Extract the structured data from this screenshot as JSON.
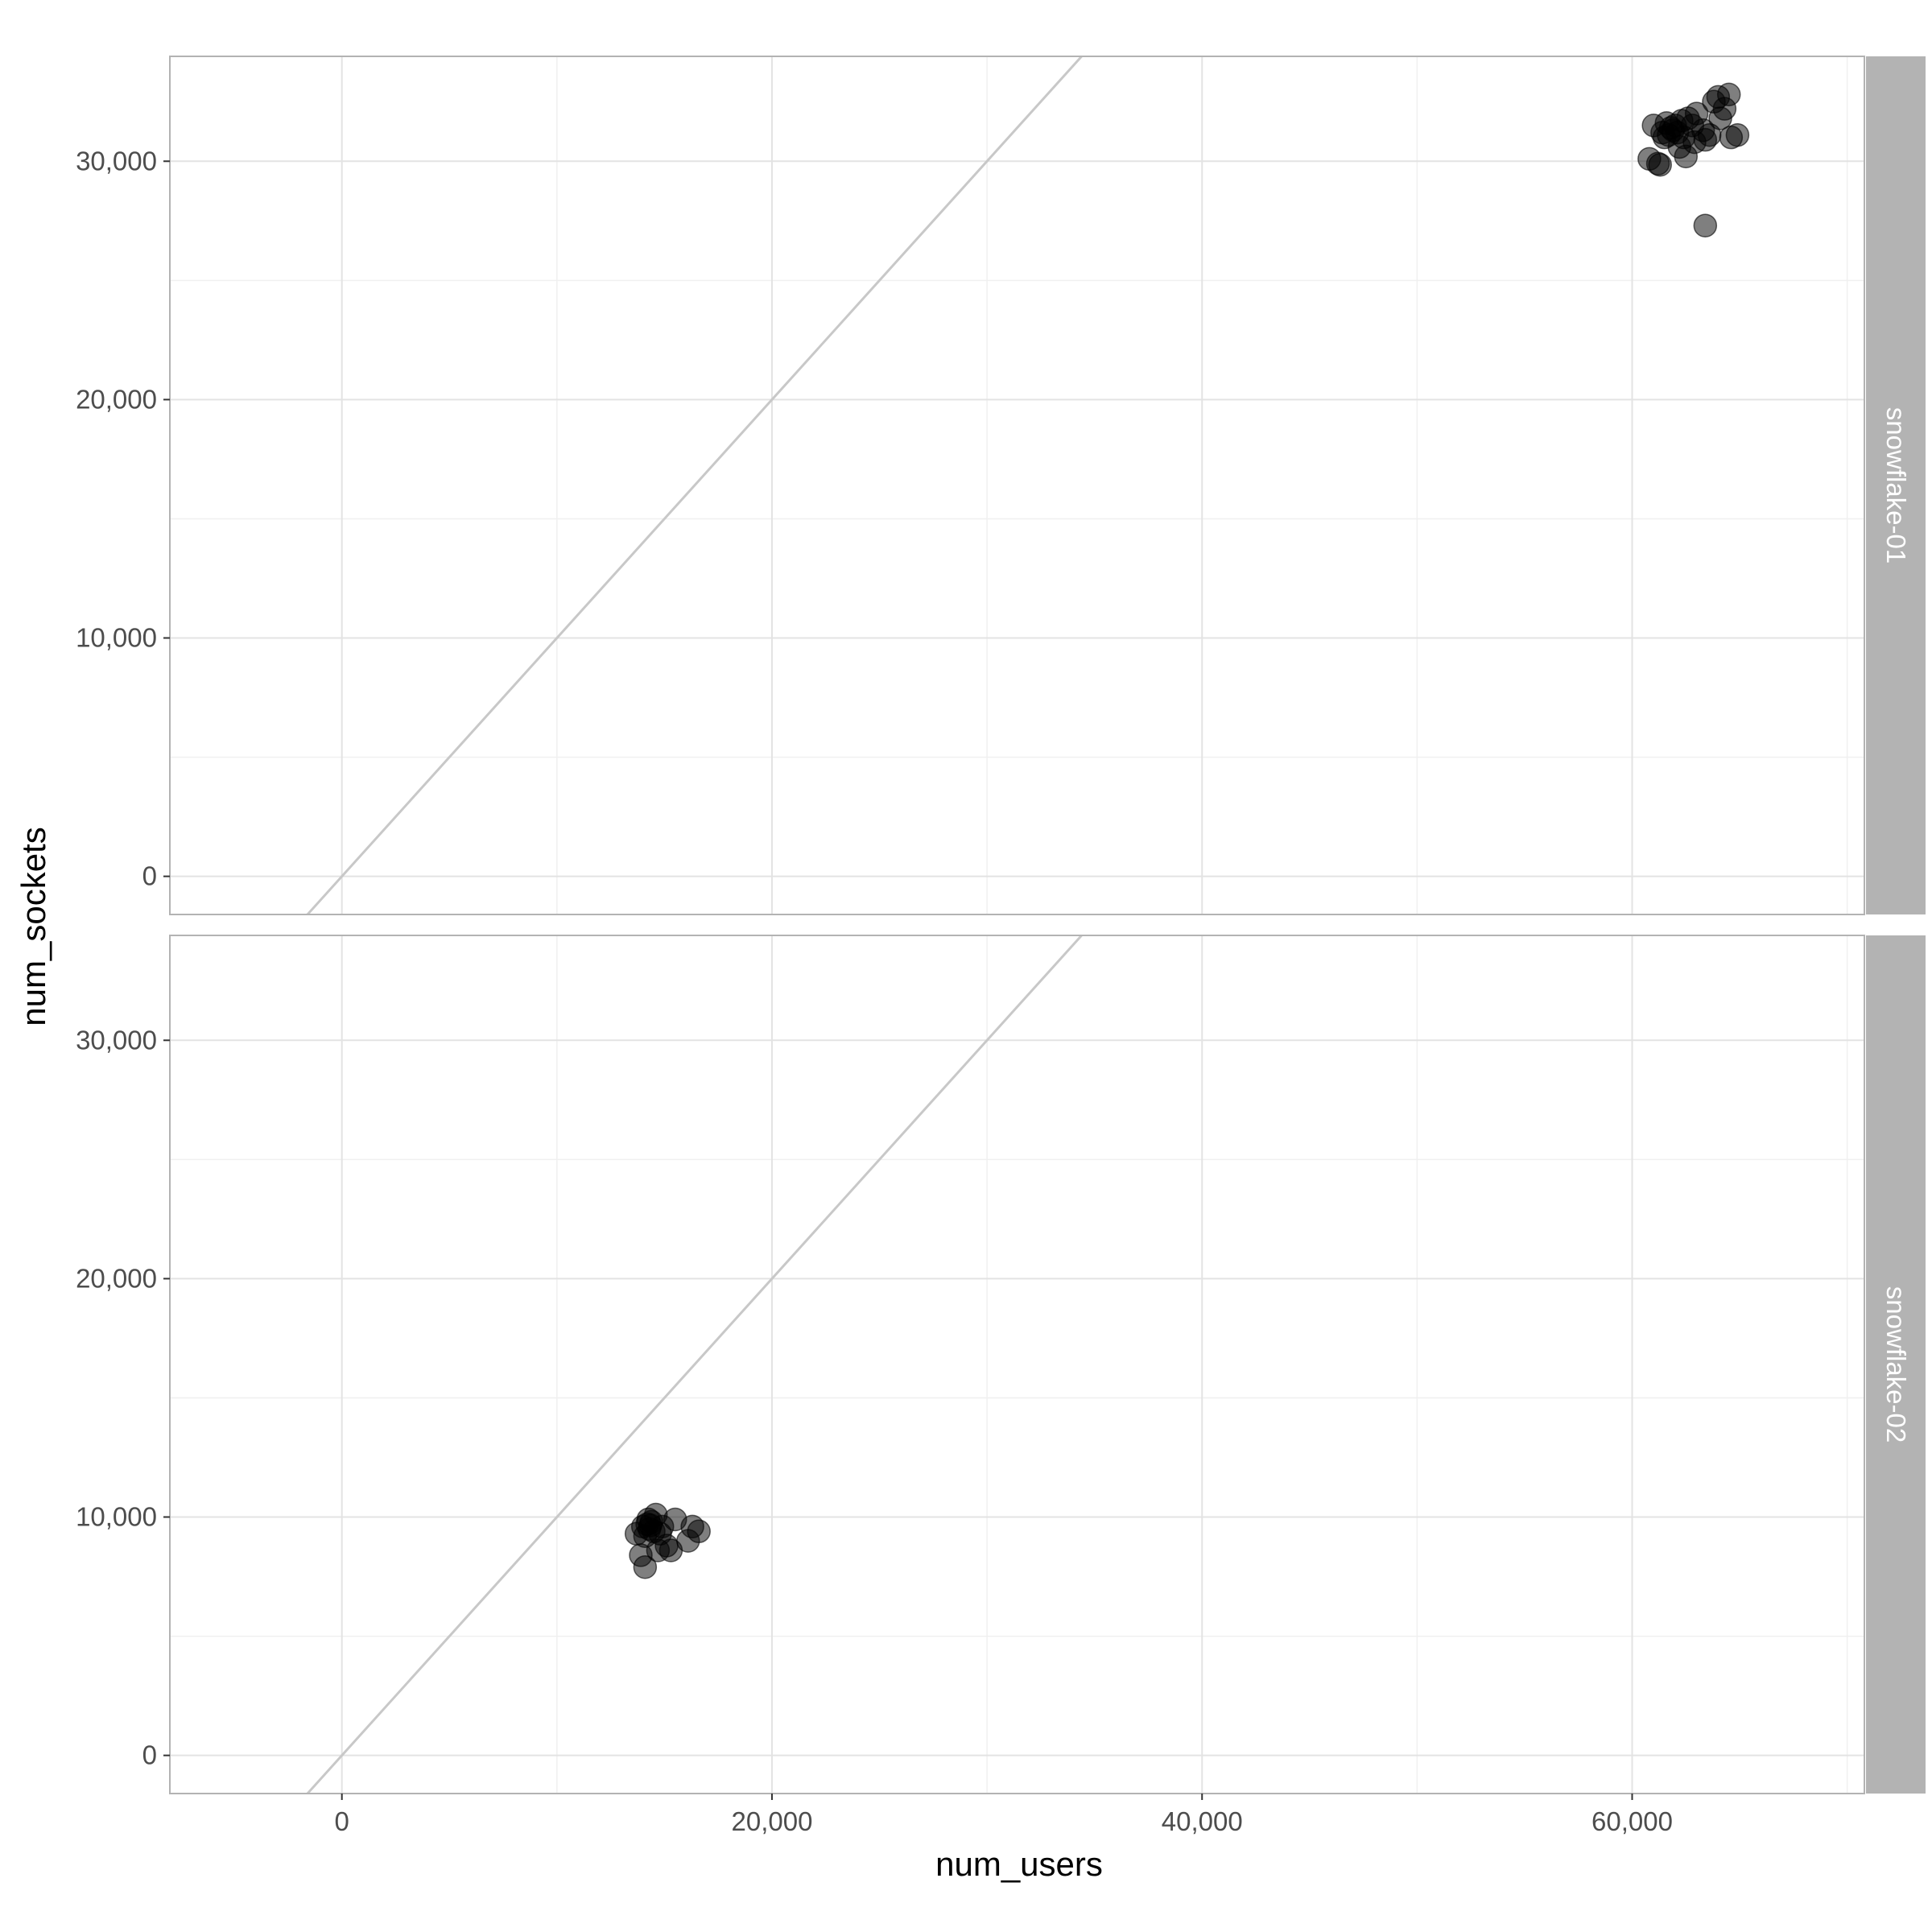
{
  "chart_data": {
    "type": "scatter",
    "xlabel": "num_users",
    "ylabel": "num_sockets",
    "xlim": [
      -8000,
      70800
    ],
    "ylim": [
      -1600,
      34400
    ],
    "x_ticks": [
      0,
      20000,
      40000,
      60000
    ],
    "x_tick_labels": [
      "0",
      "20,000",
      "40,000",
      "60,000"
    ],
    "y_ticks": [
      0,
      10000,
      20000,
      30000
    ],
    "y_tick_labels": [
      "0",
      "10,000",
      "20,000",
      "30,000"
    ],
    "grid": true,
    "reference_line": {
      "slope": 1,
      "intercept": 0,
      "color": "#c8c8c8"
    },
    "point_color": "#000000",
    "point_opacity": 0.5,
    "facets": [
      {
        "label": "snowflake-01",
        "points": [
          {
            "x": 60800,
            "y": 30100
          },
          {
            "x": 61000,
            "y": 31500
          },
          {
            "x": 61200,
            "y": 29900
          },
          {
            "x": 61300,
            "y": 29850
          },
          {
            "x": 61400,
            "y": 31200
          },
          {
            "x": 61500,
            "y": 31000
          },
          {
            "x": 61600,
            "y": 31600
          },
          {
            "x": 61700,
            "y": 31100
          },
          {
            "x": 61800,
            "y": 31400
          },
          {
            "x": 61900,
            "y": 31300
          },
          {
            "x": 62000,
            "y": 31500
          },
          {
            "x": 62100,
            "y": 31200
          },
          {
            "x": 62200,
            "y": 30600
          },
          {
            "x": 62300,
            "y": 31700
          },
          {
            "x": 62400,
            "y": 31000
          },
          {
            "x": 62500,
            "y": 30200
          },
          {
            "x": 62600,
            "y": 31800
          },
          {
            "x": 62800,
            "y": 31500
          },
          {
            "x": 62900,
            "y": 30800
          },
          {
            "x": 63000,
            "y": 32000
          },
          {
            "x": 63300,
            "y": 31300
          },
          {
            "x": 63400,
            "y": 30900
          },
          {
            "x": 63400,
            "y": 27300
          },
          {
            "x": 63600,
            "y": 31100
          },
          {
            "x": 63800,
            "y": 32500
          },
          {
            "x": 64000,
            "y": 32700
          },
          {
            "x": 64100,
            "y": 31800
          },
          {
            "x": 64300,
            "y": 32200
          },
          {
            "x": 64500,
            "y": 32800
          },
          {
            "x": 64600,
            "y": 31000
          },
          {
            "x": 64900,
            "y": 31100
          }
        ]
      },
      {
        "label": "snowflake-02",
        "points": [
          {
            "x": 13700,
            "y": 9300
          },
          {
            "x": 13900,
            "y": 8400
          },
          {
            "x": 14000,
            "y": 9600
          },
          {
            "x": 14100,
            "y": 9200
          },
          {
            "x": 14200,
            "y": 9700
          },
          {
            "x": 14300,
            "y": 9500
          },
          {
            "x": 14400,
            "y": 9800
          },
          {
            "x": 14100,
            "y": 7900
          },
          {
            "x": 14600,
            "y": 10100
          },
          {
            "x": 14500,
            "y": 9400
          },
          {
            "x": 14700,
            "y": 8600
          },
          {
            "x": 14800,
            "y": 9300
          },
          {
            "x": 14900,
            "y": 9600
          },
          {
            "x": 15100,
            "y": 8800
          },
          {
            "x": 15300,
            "y": 8600
          },
          {
            "x": 15500,
            "y": 9900
          },
          {
            "x": 16100,
            "y": 9000
          },
          {
            "x": 16300,
            "y": 9600
          },
          {
            "x": 16600,
            "y": 9400
          },
          {
            "x": 14250,
            "y": 9900
          },
          {
            "x": 14350,
            "y": 9650
          }
        ]
      }
    ]
  }
}
